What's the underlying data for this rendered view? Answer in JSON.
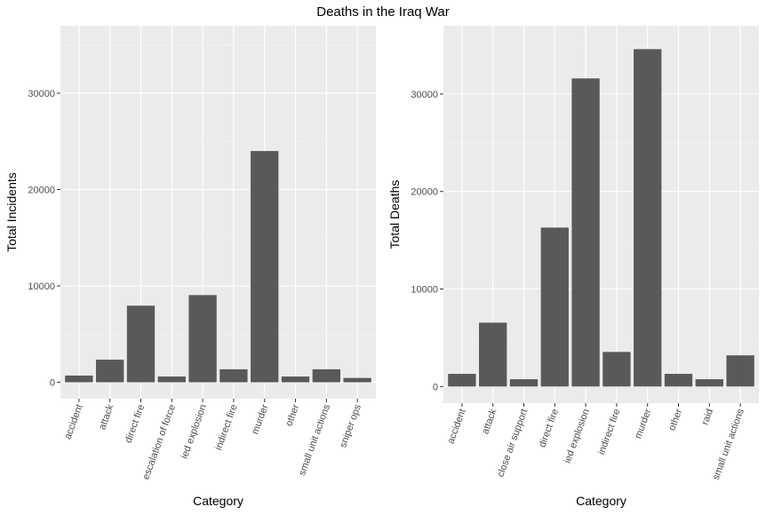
{
  "title": "Deaths in the Iraq War",
  "chart_data": [
    {
      "type": "bar",
      "title": "",
      "xlabel": "Category",
      "ylabel": "Total Incidents",
      "ylim": [
        -1700,
        37000
      ],
      "yticks": [
        0,
        10000,
        20000,
        30000
      ],
      "grid": true,
      "categories": [
        "accident",
        "attack",
        "direct fire",
        "escalation of force",
        "ied explosion",
        "indirect fire",
        "murder",
        "other",
        "small unit actions",
        "sniper ops"
      ],
      "values": [
        700,
        2350,
        7950,
        600,
        9050,
        1350,
        24000,
        600,
        1350,
        450
      ]
    },
    {
      "type": "bar",
      "title": "",
      "xlabel": "Category",
      "ylabel": "Total Deaths",
      "ylim": [
        -1700,
        37000
      ],
      "yticks": [
        0,
        10000,
        20000,
        30000
      ],
      "grid": true,
      "categories": [
        "accident",
        "attack",
        "close air support",
        "direct fire",
        "ied explosion",
        "indirect fire",
        "murder",
        "other",
        "raid",
        "small unit actions"
      ],
      "values": [
        1300,
        6550,
        750,
        16300,
        31600,
        3550,
        34600,
        1300,
        750,
        3200
      ]
    }
  ]
}
